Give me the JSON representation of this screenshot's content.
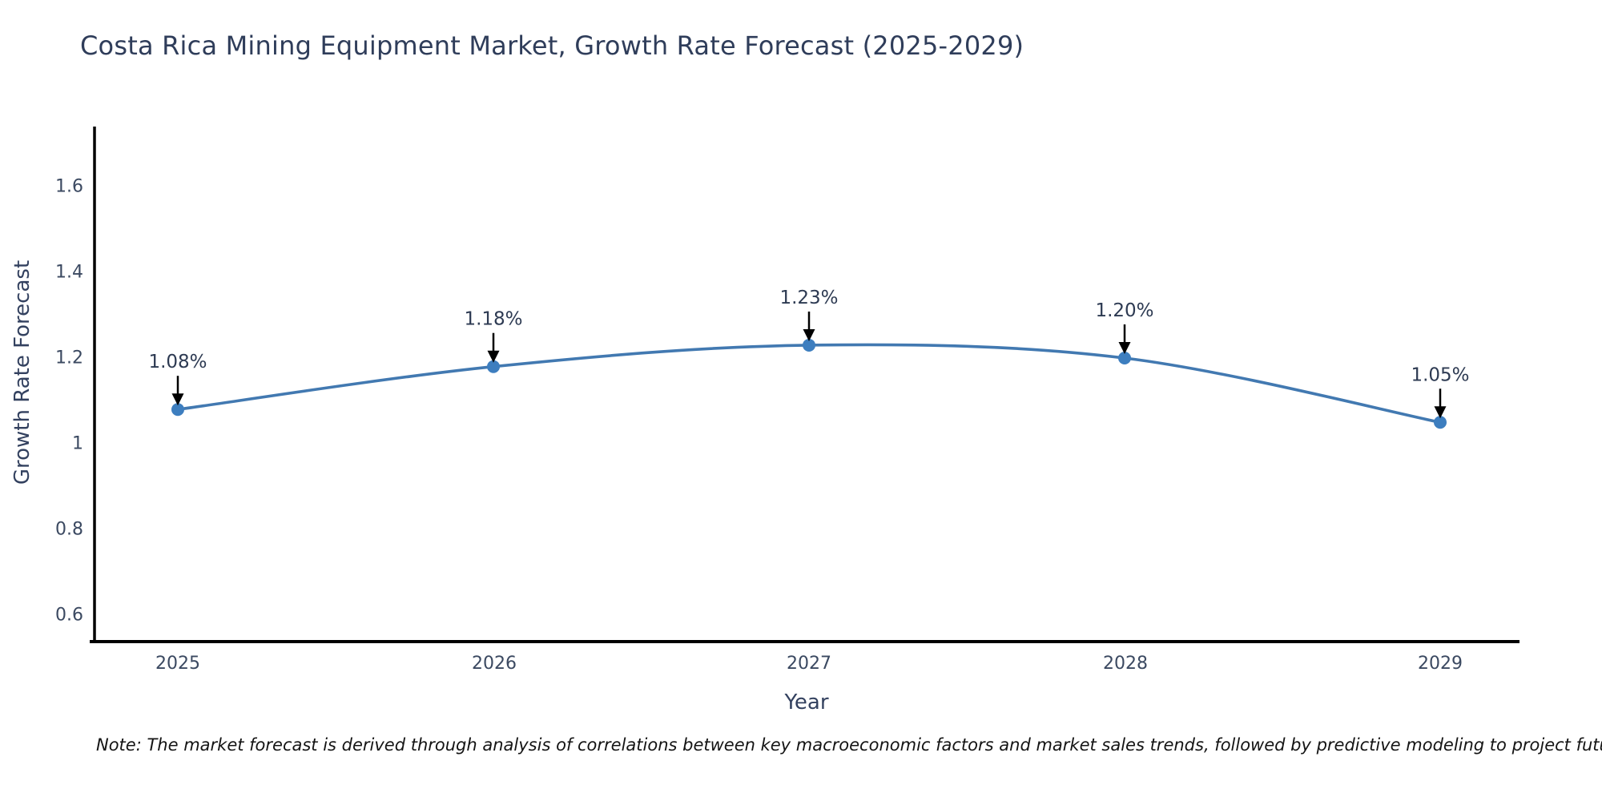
{
  "title": "Costa Rica Mining Equipment Market, Growth Rate Forecast (2025-2029)",
  "note": "Note: The market forecast is derived through analysis of correlations between key macroeconomic factors and market sales trends, followed by predictive modeling to project future sales",
  "chart_data": {
    "type": "line",
    "title": "Costa Rica Mining Equipment Market, Growth Rate Forecast (2025-2029)",
    "xlabel": "Year",
    "ylabel": "Growth Rate Forecast",
    "x": [
      2025,
      2026,
      2027,
      2028,
      2029
    ],
    "values": [
      1.08,
      1.18,
      1.23,
      1.2,
      1.05
    ],
    "labels": [
      "1.08%",
      "1.18%",
      "1.23%",
      "1.20%",
      "1.05%"
    ],
    "yticks": [
      0.6,
      0.8,
      1,
      1.2,
      1.4,
      1.6
    ],
    "ylim": [
      0.54,
      1.73
    ],
    "xlim": [
      2024.74,
      2029.25
    ],
    "grid": false,
    "legend": "none",
    "line_color": "#4279b1",
    "marker_color": "#3d7ebf",
    "arrow_color": "#000000",
    "axis_color": "#000000",
    "annotation_color": "#2d3a52"
  }
}
